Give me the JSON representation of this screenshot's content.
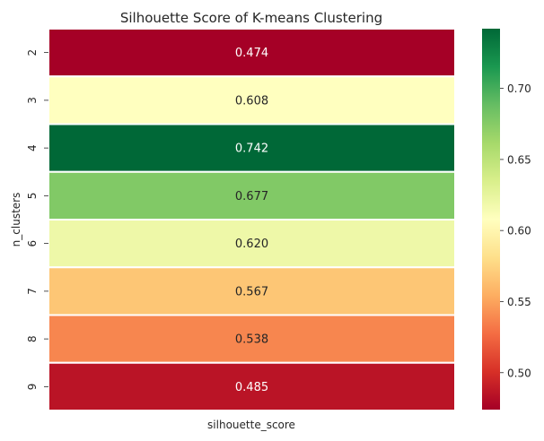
{
  "chart_data": {
    "type": "heatmap",
    "title": "Silhouette Score of K-means Clustering",
    "xlabel": "",
    "ylabel": "n_clusters",
    "columns": [
      "silhouette_score"
    ],
    "rows": [
      "2",
      "3",
      "4",
      "5",
      "6",
      "7",
      "8",
      "9"
    ],
    "values": [
      0.474,
      0.608,
      0.742,
      0.677,
      0.62,
      0.567,
      0.538,
      0.485
    ],
    "value_labels": [
      "0.474",
      "0.608",
      "0.742",
      "0.677",
      "0.620",
      "0.567",
      "0.538",
      "0.485"
    ],
    "colormap": "RdYlGn",
    "color_range": [
      0.474,
      0.742
    ],
    "colorbar_ticks": [
      "0.50",
      "0.55",
      "0.60",
      "0.65",
      "0.70"
    ],
    "colorbar_tick_values": [
      0.5,
      0.55,
      0.6,
      0.65,
      0.7
    ],
    "cell_border_color": "#ffffff",
    "grid": false
  }
}
